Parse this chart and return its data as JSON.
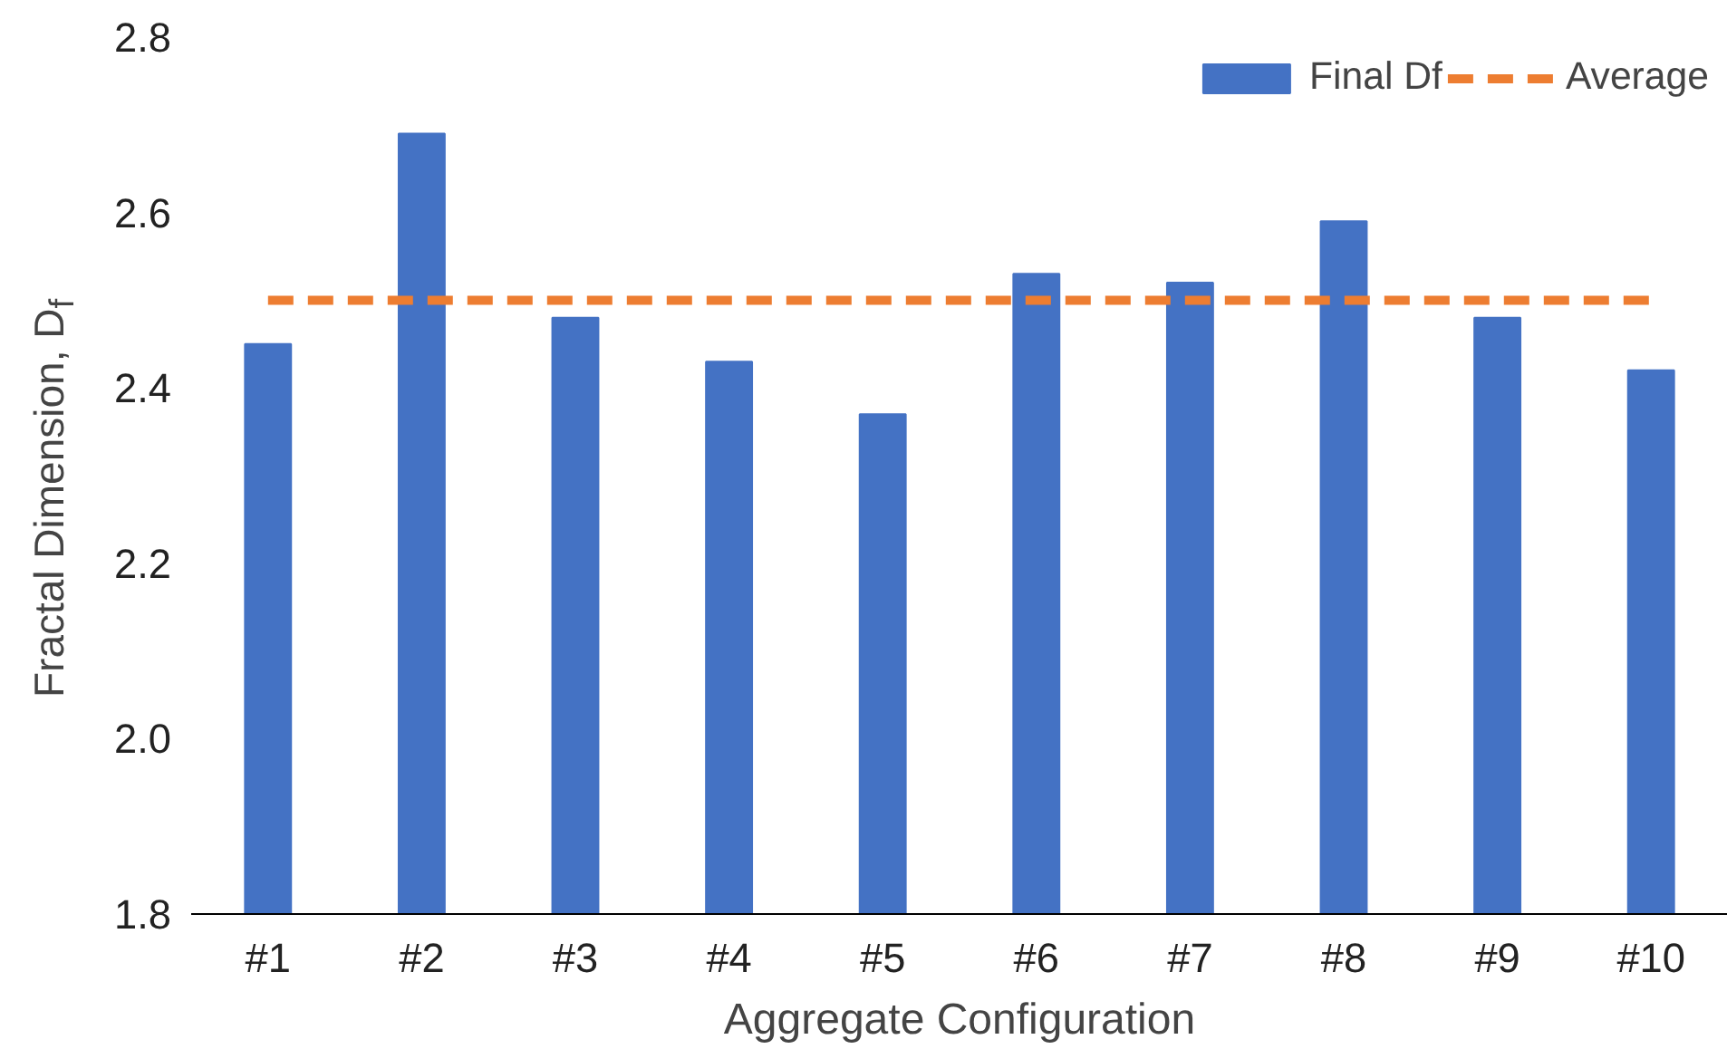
{
  "chart_data": {
    "type": "bar",
    "xlabel": "Aggregate Configuration",
    "ylabel": "Fractal Dimension, D$_{f}$",
    "categories": [
      "#1",
      "#2",
      "#3",
      "#4",
      "#5",
      "#6",
      "#7",
      "#8",
      "#9",
      "#10"
    ],
    "series": [
      {
        "name": "Final Df",
        "color": "#4472c4",
        "values": [
          2.45,
          2.69,
          2.48,
          2.43,
          2.37,
          2.53,
          2.52,
          2.59,
          2.48,
          2.42
        ]
      },
      {
        "name": "Average",
        "type": "line",
        "line_style": "dashed",
        "color": "#ed7d31",
        "values": [
          2.5,
          2.5,
          2.5,
          2.5,
          2.5,
          2.5,
          2.5,
          2.5,
          2.5,
          2.5
        ]
      }
    ],
    "ylim": [
      1.8,
      2.8
    ],
    "yticks": [
      1.8,
      {
        "value": 2,
        "label": "2.0"
      },
      2.2,
      2.4,
      2.6,
      2.8
    ],
    "grid": false,
    "legend": "top right"
  }
}
